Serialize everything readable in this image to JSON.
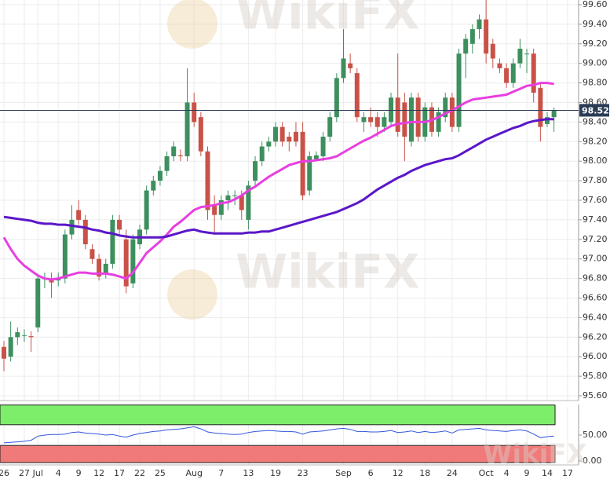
{
  "chart_data": {
    "type": "candlestick",
    "watermark": "WikiFX",
    "categories": [
      "26",
      null,
      null,
      "27",
      null,
      "Jul",
      null,
      null,
      "4",
      null,
      null,
      "9",
      null,
      null,
      "12",
      null,
      null,
      "17",
      null,
      null,
      "22",
      null,
      null,
      "25",
      null,
      null,
      null,
      null,
      "Aug",
      null,
      null,
      null,
      "7",
      null,
      null,
      null,
      "13",
      null,
      null,
      null,
      "19",
      null,
      null,
      null,
      "23",
      null,
      null,
      null,
      null,
      null,
      "Sep",
      null,
      null,
      null,
      "6",
      null,
      null,
      null,
      "12",
      null,
      null,
      null,
      "18",
      null,
      null,
      null,
      "24",
      null,
      null,
      null,
      null,
      "Oct",
      null,
      null,
      "4",
      null,
      null,
      "9",
      null,
      null,
      "14",
      null,
      null,
      "17"
    ],
    "up_color": "#3d8f5e",
    "down_color": "#c95248",
    "ohlc": [
      [
        96.1,
        96.16,
        95.85,
        95.98
      ],
      [
        96.0,
        96.36,
        95.95,
        96.2
      ],
      [
        96.2,
        96.3,
        96.12,
        96.25
      ],
      [
        96.22,
        96.28,
        96.15,
        96.22
      ],
      [
        96.21,
        96.26,
        96.05,
        96.2
      ],
      [
        96.3,
        96.85,
        96.25,
        96.8
      ],
      [
        96.8,
        96.86,
        96.7,
        96.8
      ],
      [
        96.78,
        96.86,
        96.6,
        96.76
      ],
      [
        96.78,
        96.86,
        96.72,
        96.8
      ],
      [
        96.8,
        97.3,
        96.75,
        97.25
      ],
      [
        97.25,
        97.55,
        97.2,
        97.4
      ],
      [
        97.5,
        97.6,
        97.35,
        97.4
      ],
      [
        97.4,
        97.45,
        97.1,
        97.15
      ],
      [
        97.1,
        97.15,
        96.95,
        97.0
      ],
      [
        97.0,
        97.05,
        96.78,
        96.82
      ],
      [
        96.85,
        97.0,
        96.8,
        96.95
      ],
      [
        96.95,
        97.45,
        96.9,
        97.4
      ],
      [
        97.4,
        97.45,
        97.25,
        97.3
      ],
      [
        97.2,
        97.3,
        96.65,
        96.72
      ],
      [
        96.75,
        97.25,
        96.7,
        97.2
      ],
      [
        97.15,
        97.35,
        97.1,
        97.3
      ],
      [
        97.3,
        97.75,
        97.25,
        97.7
      ],
      [
        97.7,
        97.85,
        97.65,
        97.8
      ],
      [
        97.8,
        97.95,
        97.75,
        97.9
      ],
      [
        97.9,
        98.1,
        97.85,
        98.05
      ],
      [
        98.05,
        98.2,
        98.0,
        98.15
      ],
      [
        98.06,
        98.12,
        98.0,
        98.05
      ],
      [
        98.05,
        98.95,
        98.0,
        98.6
      ],
      [
        98.6,
        98.7,
        98.35,
        98.4
      ],
      [
        98.45,
        98.5,
        98.05,
        98.1
      ],
      [
        98.1,
        98.15,
        97.4,
        97.5
      ],
      [
        97.55,
        97.65,
        97.25,
        97.45
      ],
      [
        97.45,
        97.65,
        97.4,
        97.6
      ],
      [
        97.6,
        97.7,
        97.5,
        97.65
      ],
      [
        97.65,
        97.7,
        97.55,
        97.65
      ],
      [
        97.65,
        97.7,
        97.4,
        97.5
      ],
      [
        97.4,
        97.8,
        97.3,
        97.75
      ],
      [
        97.8,
        98.05,
        97.75,
        98.0
      ],
      [
        98.0,
        98.2,
        97.95,
        98.15
      ],
      [
        98.15,
        98.25,
        98.1,
        98.2
      ],
      [
        98.2,
        98.4,
        98.15,
        98.35
      ],
      [
        98.35,
        98.4,
        98.15,
        98.2
      ],
      [
        98.25,
        98.3,
        98.1,
        98.2
      ],
      [
        98.3,
        98.4,
        98.15,
        98.2
      ],
      [
        98.3,
        98.4,
        97.6,
        97.65
      ],
      [
        97.7,
        98.1,
        97.65,
        98.05
      ],
      [
        98.02,
        98.1,
        98.0,
        98.06
      ],
      [
        98.05,
        98.3,
        98.0,
        98.25
      ],
      [
        98.25,
        98.5,
        98.2,
        98.45
      ],
      [
        98.45,
        98.9,
        98.4,
        98.85
      ],
      [
        98.85,
        99.35,
        98.8,
        99.05
      ],
      [
        99.0,
        99.1,
        98.9,
        98.95
      ],
      [
        98.9,
        98.95,
        98.4,
        98.45
      ],
      [
        98.4,
        98.5,
        98.3,
        98.45
      ],
      [
        98.45,
        98.55,
        98.35,
        98.4
      ],
      [
        98.45,
        98.5,
        98.25,
        98.35
      ],
      [
        98.35,
        98.5,
        98.3,
        98.45
      ],
      [
        98.4,
        98.7,
        98.35,
        98.65
      ],
      [
        98.65,
        99.1,
        98.25,
        98.3
      ],
      [
        98.6,
        98.7,
        98.0,
        98.25
      ],
      [
        98.2,
        98.7,
        98.15,
        98.65
      ],
      [
        98.65,
        98.7,
        98.2,
        98.25
      ],
      [
        98.25,
        98.6,
        98.2,
        98.55
      ],
      [
        98.55,
        98.6,
        98.25,
        98.3
      ],
      [
        98.3,
        98.55,
        98.25,
        98.5
      ],
      [
        98.45,
        98.7,
        98.4,
        98.65
      ],
      [
        98.65,
        98.7,
        98.3,
        98.35
      ],
      [
        98.35,
        99.15,
        98.3,
        99.1
      ],
      [
        99.1,
        99.3,
        98.85,
        99.25
      ],
      [
        99.2,
        99.4,
        99.1,
        99.35
      ],
      [
        99.35,
        99.5,
        99.25,
        99.45
      ],
      [
        99.45,
        99.65,
        99.0,
        99.1
      ],
      [
        99.2,
        99.25,
        98.95,
        99.05
      ],
      [
        99.0,
        99.05,
        98.9,
        98.95
      ],
      [
        98.95,
        99.0,
        98.75,
        98.8
      ],
      [
        98.8,
        99.05,
        98.75,
        99.0
      ],
      [
        99.0,
        99.25,
        98.95,
        99.15
      ],
      [
        99.1,
        99.15,
        98.9,
        99.1
      ],
      [
        99.1,
        99.15,
        98.6,
        98.7
      ],
      [
        98.75,
        98.8,
        98.2,
        98.35
      ],
      [
        98.38,
        98.5,
        98.35,
        98.45
      ],
      [
        98.45,
        98.55,
        98.3,
        98.52
      ],
      null,
      null
    ],
    "series": [
      {
        "color": "#e83ee0",
        "values": [
          97.22,
          97.1,
          97.0,
          96.93,
          96.88,
          96.83,
          96.8,
          96.79,
          96.8,
          96.82,
          96.84,
          96.86,
          96.86,
          96.85,
          96.85,
          96.85,
          96.84,
          96.82,
          96.8,
          96.86,
          96.96,
          97.06,
          97.12,
          97.18,
          97.25,
          97.33,
          97.38,
          97.44,
          97.5,
          97.53,
          97.54,
          97.55,
          97.57,
          97.58,
          97.61,
          97.65,
          97.7,
          97.74,
          97.79,
          97.84,
          97.88,
          97.92,
          97.96,
          97.98,
          98.0,
          98.0,
          98.01,
          98.02,
          98.03,
          98.05,
          98.09,
          98.13,
          98.17,
          98.21,
          98.24,
          98.28,
          98.32,
          98.36,
          98.38,
          98.39,
          98.4,
          98.4,
          98.4,
          98.42,
          98.45,
          98.49,
          98.52,
          98.56,
          98.6,
          98.63,
          98.64,
          98.65,
          98.66,
          98.67,
          98.68,
          98.71,
          98.74,
          98.77,
          98.78,
          98.8,
          98.8,
          98.79,
          null,
          null
        ]
      },
      {
        "color": "#5a17c8",
        "values": [
          97.43,
          97.42,
          97.41,
          97.4,
          97.39,
          97.37,
          97.36,
          97.36,
          97.35,
          97.35,
          97.34,
          97.33,
          97.32,
          97.3,
          97.29,
          97.27,
          97.26,
          97.24,
          97.23,
          97.22,
          97.22,
          97.22,
          97.22,
          97.22,
          97.23,
          97.25,
          97.27,
          97.29,
          97.3,
          97.28,
          97.27,
          97.26,
          97.26,
          97.26,
          97.26,
          97.26,
          97.27,
          97.27,
          97.28,
          97.28,
          97.3,
          97.32,
          97.34,
          97.36,
          97.38,
          97.4,
          97.42,
          97.44,
          97.46,
          97.48,
          97.51,
          97.54,
          97.57,
          97.61,
          97.66,
          97.71,
          97.75,
          97.79,
          97.83,
          97.86,
          97.9,
          97.93,
          97.96,
          97.98,
          98.0,
          98.02,
          98.03,
          98.06,
          98.1,
          98.14,
          98.18,
          98.22,
          98.25,
          98.28,
          98.31,
          98.34,
          98.36,
          98.39,
          98.41,
          98.42,
          98.43,
          98.43,
          null,
          null
        ]
      }
    ],
    "last_price": 98.52,
    "ylim": [
      95.5,
      99.65
    ],
    "yticks": [
      {
        "value": 95.6,
        "label": "95.60"
      },
      {
        "value": 95.8,
        "label": "95.80"
      },
      {
        "value": 96.0,
        "label": "96.00"
      },
      {
        "value": 96.2,
        "label": "96.20"
      },
      {
        "value": 96.4,
        "label": "96.40"
      },
      {
        "value": 96.6,
        "label": "96.60"
      },
      {
        "value": 96.8,
        "label": "96.80"
      },
      {
        "value": 97.0,
        "label": "97.00"
      },
      {
        "value": 97.2,
        "label": "97.20"
      },
      {
        "value": 97.4,
        "label": "97.40"
      },
      {
        "value": 97.6,
        "label": "97.60"
      },
      {
        "value": 97.8,
        "label": "97.80"
      },
      {
        "value": 98.0,
        "label": "98.00"
      },
      {
        "value": 98.2,
        "label": "98.20"
      },
      {
        "value": 98.4,
        "label": "98.40"
      },
      {
        "value": 98.6,
        "label": "98.60"
      },
      {
        "value": 98.8,
        "label": "98.80"
      },
      {
        "value": 99.0,
        "label": "99.00"
      },
      {
        "value": 99.2,
        "label": "99.20"
      },
      {
        "value": 99.4,
        "label": "99.40"
      },
      {
        "value": 99.6,
        "label": "99.60"
      }
    ],
    "indicator": {
      "color": "#3355dd",
      "ylim": [
        0,
        100
      ],
      "upper_zone": [
        70,
        108
      ],
      "lower_zone": [
        -3,
        30
      ],
      "upper_color": "#7dee6a",
      "lower_color": "#f07a7a",
      "yticks": [
        {
          "value": 0,
          "label": "0.00"
        },
        {
          "value": 50,
          "label": "50.00"
        }
      ],
      "values": [
        35,
        36,
        37,
        38,
        40,
        48,
        50,
        51,
        51,
        52,
        55,
        56,
        54,
        53,
        52,
        50,
        51,
        48,
        46,
        50,
        53,
        55,
        57,
        58,
        60,
        61,
        62,
        64,
        66,
        62,
        56,
        54,
        53,
        52,
        51,
        52,
        55,
        57,
        58,
        59,
        58,
        57,
        57,
        56,
        52,
        56,
        57,
        58,
        60,
        62,
        63,
        61,
        57,
        57,
        56,
        56,
        57,
        59,
        55,
        56,
        58,
        55,
        57,
        55,
        56,
        58,
        54,
        60,
        61,
        62,
        63,
        60,
        59,
        58,
        57,
        59,
        60,
        58,
        52,
        45,
        47,
        48,
        null,
        null
      ]
    }
  }
}
